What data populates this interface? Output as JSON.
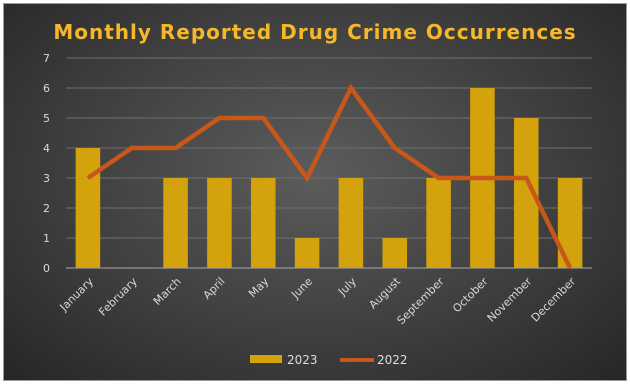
{
  "chart_data": {
    "type": "bar",
    "title": "Monthly Reported Drug Crime Occurrences",
    "xlabel": "",
    "ylabel": "",
    "categories": [
      "January",
      "February",
      "March",
      "April",
      "May",
      "June",
      "July",
      "August",
      "September",
      "October",
      "November",
      "December"
    ],
    "ylim": [
      0,
      7
    ],
    "yticks": [
      0,
      1,
      2,
      3,
      4,
      5,
      6,
      7
    ],
    "grid": true,
    "legend_position": "bottom",
    "series": [
      {
        "name": "2023",
        "type": "bar",
        "color": "#d4a20c",
        "values": [
          4,
          0,
          3,
          3,
          3,
          1,
          3,
          1,
          3,
          6,
          5,
          3
        ]
      },
      {
        "name": "2022",
        "type": "line",
        "color": "#c8571a",
        "values": [
          3,
          4,
          4,
          5,
          5,
          3,
          6,
          4,
          3,
          3,
          3,
          0
        ]
      }
    ]
  }
}
